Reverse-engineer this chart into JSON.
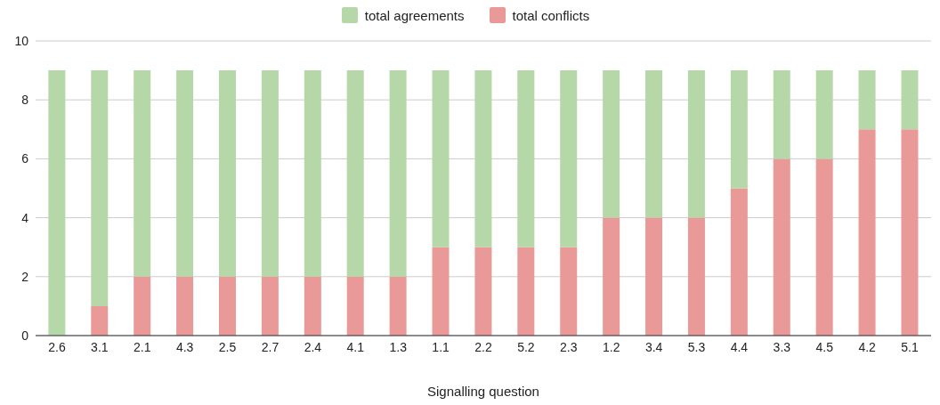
{
  "chart_data": {
    "type": "bar",
    "stacked": true,
    "xlabel": "Signalling question",
    "categories": [
      "2.6",
      "3.1",
      "2.1",
      "4.3",
      "2.5",
      "2.7",
      "2.4",
      "4.1",
      "1.3",
      "1.1",
      "2.2",
      "5.2",
      "2.3",
      "1.2",
      "3.4",
      "5.3",
      "4.4",
      "3.3",
      "4.5",
      "4.2",
      "5.1"
    ],
    "series": [
      {
        "name": "total conflicts",
        "color": "#ea9999",
        "values": [
          0,
          1,
          2,
          2,
          2,
          2,
          2,
          2,
          2,
          3,
          3,
          3,
          3,
          4,
          4,
          4,
          5,
          6,
          6,
          7,
          7
        ]
      },
      {
        "name": "total agreements",
        "color": "#b6d7a8",
        "values": [
          9,
          8,
          7,
          7,
          7,
          7,
          7,
          7,
          7,
          6,
          6,
          6,
          6,
          5,
          5,
          5,
          4,
          3,
          3,
          2,
          2
        ]
      }
    ],
    "ylim": [
      0,
      10
    ],
    "yticks": [
      0,
      2,
      4,
      6,
      8,
      10
    ],
    "grid": "y",
    "legend": "top"
  }
}
